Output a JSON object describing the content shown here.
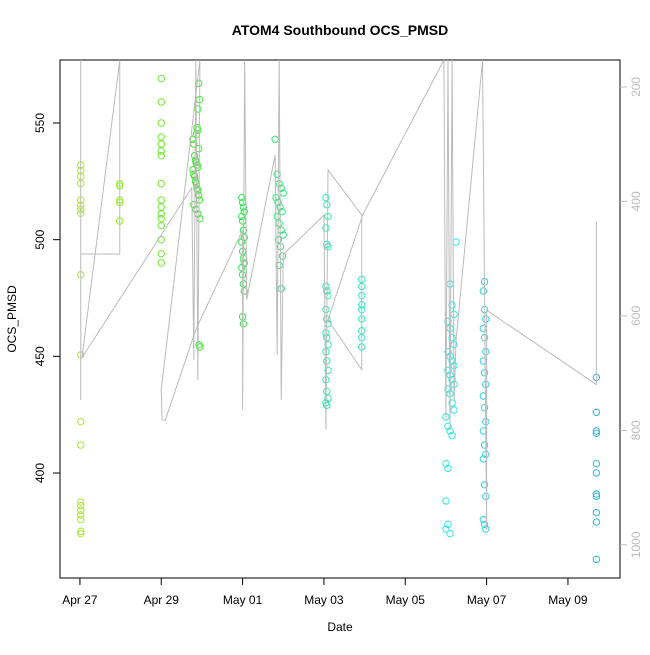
{
  "chart_data": {
    "type": "scatter",
    "title": "ATOM4 Southbound OCS_PMSD",
    "xlabel": "Date",
    "ylabel": "OCS_PMSD",
    "xlim": [
      26.51,
      40.28
    ],
    "xticks": [
      {
        "value": 27,
        "label": "Apr 27"
      },
      {
        "value": 29,
        "label": "Apr 29"
      },
      {
        "value": 31,
        "label": "May 01"
      },
      {
        "value": 33,
        "label": "May 03"
      },
      {
        "value": 35,
        "label": "May 05"
      },
      {
        "value": 37,
        "label": "May 07"
      },
      {
        "value": 39,
        "label": "May 09"
      }
    ],
    "ylim": [
      355,
      577
    ],
    "yticks": [
      400,
      450,
      500,
      550
    ],
    "y2lim": [
      1058,
      153
    ],
    "y2ticks": [
      200,
      400,
      600,
      800,
      1000
    ],
    "y2_color": "#bbbbbb",
    "series": [
      {
        "color": "#a6e82e",
        "x": [
          27.02,
          27.02,
          27.02,
          27.02,
          27.02,
          27.02,
          27.02,
          27.02,
          27.02,
          27.02,
          27.02,
          27.02,
          27.02,
          27.02,
          27.02,
          27.02,
          27.02,
          27.02,
          27.02
        ],
        "values": [
          532,
          529.6,
          527,
          524,
          517,
          514.7,
          513,
          511.3,
          485,
          450.6,
          422,
          412,
          387.5,
          386,
          384,
          382,
          380,
          375,
          374
        ]
      },
      {
        "color": "#94e82e",
        "x": [
          27.98,
          27.98,
          27.98,
          27.98,
          27.98
        ],
        "values": [
          524,
          523,
          517,
          516,
          508
        ]
      },
      {
        "color": "#6fe82e",
        "x": [
          29.0,
          29.0,
          29.0,
          29.0,
          29.0,
          29.0,
          29.0,
          29.0,
          29.0,
          29.0,
          29.0,
          29.0,
          29.0,
          29.0,
          29.0,
          29.0
        ],
        "values": [
          569,
          559,
          550,
          544,
          541,
          538,
          536,
          524,
          517,
          514,
          511,
          509,
          506,
          500,
          494,
          490
        ]
      },
      {
        "color": "#3de82e",
        "x": [
          29.78,
          29.8,
          29.82,
          29.84,
          29.86,
          29.88,
          29.9,
          29.78,
          29.8,
          29.82,
          29.84,
          29.86,
          29.88,
          29.9,
          29.92,
          29.94,
          29.8,
          29.85,
          29.9,
          29.95,
          29.92,
          29.94,
          29.9,
          29.88,
          29.9,
          29.86,
          29.92,
          29.93,
          29.95
        ],
        "values": [
          543,
          541,
          536,
          534,
          533,
          532,
          531,
          530,
          528,
          527,
          525,
          524,
          522,
          521,
          519,
          517,
          515,
          513,
          511,
          509,
          567,
          560,
          556,
          548,
          547,
          545,
          539,
          455,
          454
        ]
      },
      {
        "color": "#2ee850",
        "x": [
          30.98,
          31.0,
          31.02,
          31.04,
          30.98,
          31.0,
          31.02,
          31.04,
          30.98,
          31.0,
          31.02,
          31.04,
          30.98,
          31.0,
          31.02,
          31.04,
          31.0,
          31.02
        ],
        "values": [
          518,
          516,
          514,
          512,
          510,
          508,
          504,
          501,
          499,
          495,
          492,
          490,
          488,
          485,
          481,
          478,
          467,
          464
        ]
      },
      {
        "color": "#2ee877",
        "x": [
          31.8,
          31.85,
          31.9,
          31.95,
          32.0,
          31.82,
          31.87,
          31.92,
          31.97,
          31.85,
          31.9,
          31.95,
          32.0,
          31.88,
          31.93,
          31.98,
          31.9,
          31.95
        ],
        "values": [
          543,
          528,
          524,
          522,
          520,
          518,
          516,
          514,
          512,
          510,
          507,
          504,
          502,
          500,
          497,
          493,
          489,
          479
        ]
      },
      {
        "color": "#2ee8b5",
        "x": [
          33.05,
          33.07,
          33.1,
          33.05,
          33.07,
          33.1,
          33.05,
          33.07,
          33.1,
          33.05,
          33.07,
          33.1,
          33.05,
          33.07,
          33.1,
          33.05,
          33.07,
          33.1,
          33.05,
          33.07,
          33.1,
          33.05,
          33.07
        ],
        "values": [
          518,
          515,
          510,
          505,
          498,
          497,
          480,
          478,
          476,
          470,
          466,
          464,
          460,
          458,
          455,
          452,
          448,
          444,
          440,
          435,
          432,
          430,
          429
        ]
      },
      {
        "color": "#2ee8c4",
        "x": [
          33.93,
          33.93,
          33.93,
          33.93,
          33.93,
          33.93,
          33.93,
          33.93,
          33.93
        ],
        "values": [
          483,
          480,
          476,
          472,
          470,
          466,
          461,
          458,
          454
        ]
      },
      {
        "color": "#2ee8e8",
        "x": [
          36.25,
          36.1,
          36.15,
          36.2,
          36.05,
          36.1,
          36.15,
          36.2,
          36.05,
          36.1,
          36.15,
          36.2,
          36.05,
          36.1,
          36.15,
          36.2,
          36.05,
          36.1,
          36.15,
          36.2,
          36.0,
          36.05,
          36.1,
          36.15,
          36.0,
          36.05,
          36.0,
          36.05,
          36.0,
          36.1
        ],
        "values": [
          499,
          481,
          472,
          468,
          465,
          462,
          458,
          455,
          452,
          450,
          448,
          446,
          444,
          442,
          440,
          438,
          436,
          434,
          430,
          427,
          424,
          420,
          418,
          416,
          404,
          402,
          388,
          378,
          376,
          374
        ]
      },
      {
        "color": "#2ed3e8",
        "x": [
          36.95,
          36.92,
          36.95,
          36.98,
          36.92,
          36.95,
          36.98,
          36.92,
          36.95,
          36.98,
          36.92,
          36.95,
          36.98,
          36.92,
          36.95,
          36.98,
          36.92,
          36.95,
          36.98,
          36.92,
          36.95,
          36.98
        ],
        "values": [
          482,
          478,
          470,
          466,
          462,
          458,
          452,
          448,
          443,
          438,
          433,
          428,
          422,
          418,
          412,
          408,
          406,
          395,
          390,
          380,
          378,
          376
        ]
      },
      {
        "color": "#2eb8e8",
        "x": [
          39.7,
          39.7,
          39.7,
          39.7,
          39.7,
          39.7,
          39.7,
          39.7,
          39.7,
          39.7,
          39.7
        ],
        "values": [
          441,
          426,
          418,
          417,
          404,
          400,
          391,
          390,
          383,
          379,
          363
        ]
      },
      {
        "type": "line",
        "axis": "y2",
        "color": "#bbbbbb",
        "x": [
          27.02,
          27.02,
          27.02,
          27.98,
          27.98,
          27.05,
          29.75,
          29.8,
          29.85,
          29.9,
          29.95,
          29.0,
          29.02,
          29.1,
          29.85,
          31.0,
          31.0,
          31.05,
          31.1,
          31.8,
          31.85,
          31.9,
          31.95,
          32.0,
          33.0,
          33.05,
          33.1,
          33.93,
          33.93,
          33.1,
          33.95,
          35.95,
          36.0,
          36.05,
          36.1,
          36.15,
          36.2,
          36.25,
          36.9,
          37.0,
          37.0,
          39.7,
          39.7
        ],
        "values": [
          153,
          747,
          492,
          492,
          153,
          673,
          376,
          677,
          153,
          712,
          153,
          729,
          782,
          782,
          624,
          450,
          764,
          153,
          572,
          319,
          668,
          153,
          747,
          493,
          424,
          799,
          345,
          424,
          694,
          607,
          424,
          153,
          782,
          153,
          799,
          153,
          747,
          642,
          153,
          974,
          590,
          720,
          436
        ]
      }
    ]
  }
}
